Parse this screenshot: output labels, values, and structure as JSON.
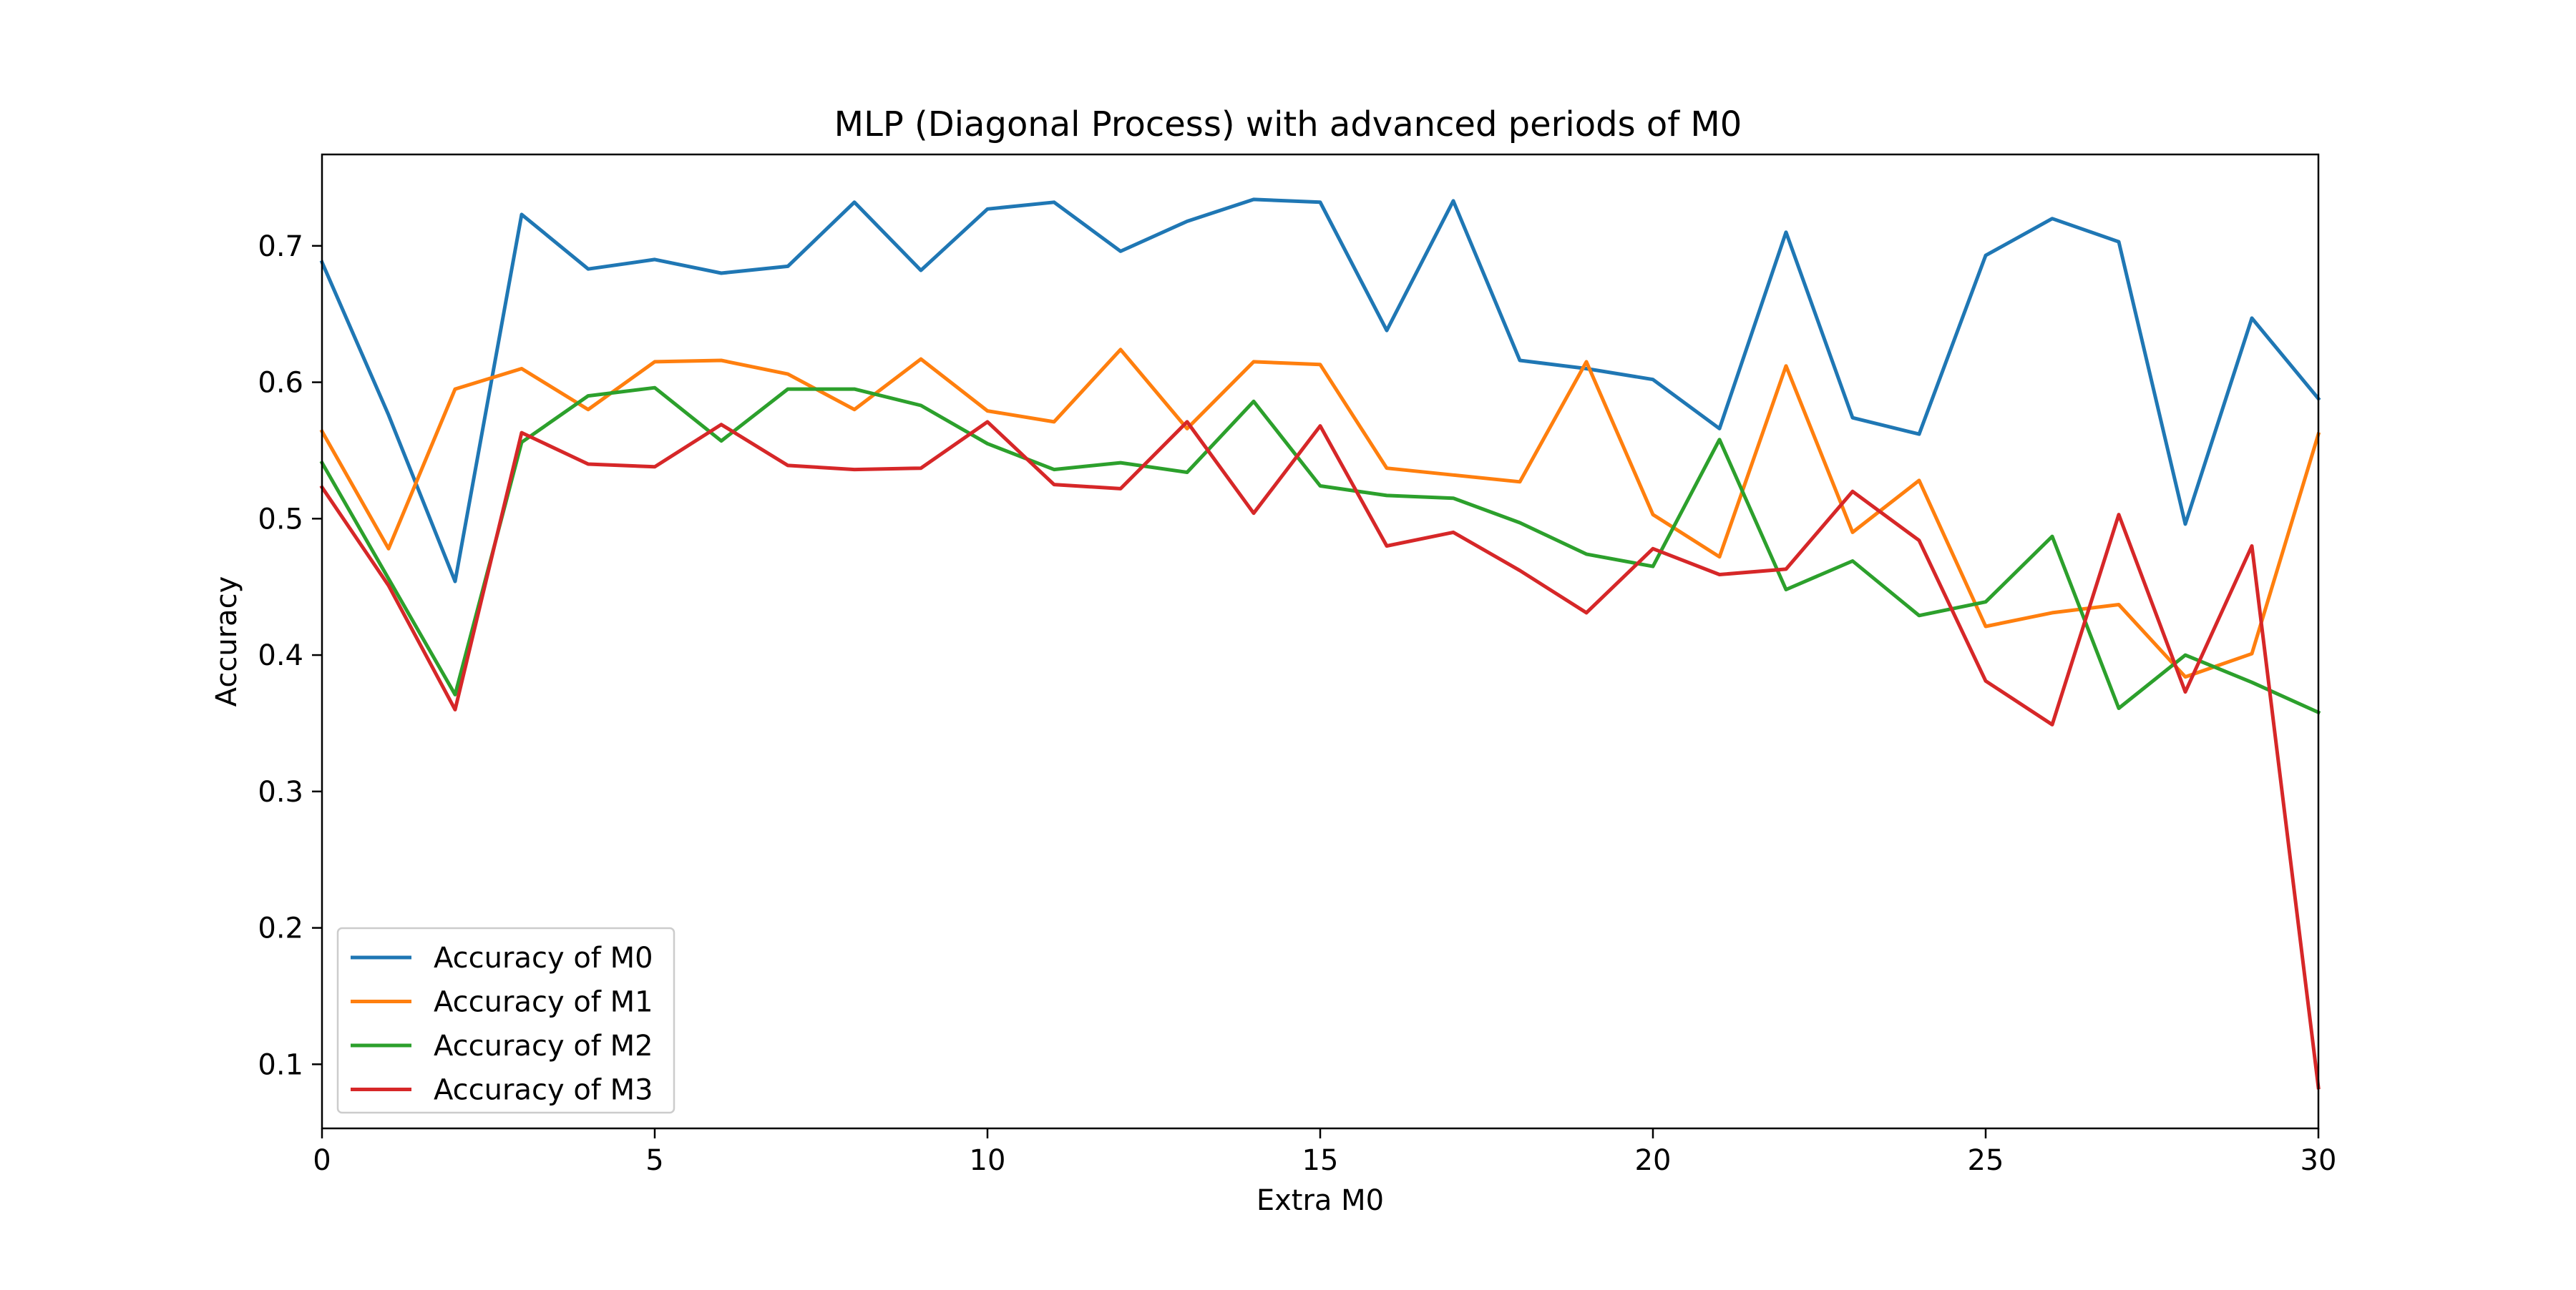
{
  "chart_data": {
    "type": "line",
    "title": "MLP (Diagonal Process) with advanced periods of M0",
    "xlabel": "Extra M0",
    "ylabel": "Accuracy",
    "xlim": [
      0,
      30
    ],
    "ylim": [
      0.053,
      0.767
    ],
    "xticks": [
      0,
      5,
      10,
      15,
      20,
      25,
      30
    ],
    "yticks": [
      0.1,
      0.2,
      0.3,
      0.4,
      0.5,
      0.6,
      0.7
    ],
    "grid": false,
    "legend_position": "lower-left",
    "x": [
      0,
      1,
      2,
      3,
      4,
      5,
      6,
      7,
      8,
      9,
      10,
      11,
      12,
      13,
      14,
      15,
      16,
      17,
      18,
      19,
      20,
      21,
      22,
      23,
      24,
      25,
      26,
      27,
      28,
      29,
      30
    ],
    "series": [
      {
        "name": "Accuracy of M0",
        "color": "#1f77b4",
        "values": [
          0.688,
          0.576,
          0.454,
          0.723,
          0.683,
          0.69,
          0.68,
          0.685,
          0.732,
          0.682,
          0.727,
          0.732,
          0.696,
          0.718,
          0.734,
          0.732,
          0.638,
          0.733,
          0.616,
          0.61,
          0.602,
          0.566,
          0.71,
          0.574,
          0.562,
          0.693,
          0.72,
          0.703,
          0.496,
          0.647,
          0.588
        ]
      },
      {
        "name": "Accuracy of M1",
        "color": "#ff7f0e",
        "values": [
          0.564,
          0.478,
          0.595,
          0.61,
          0.58,
          0.615,
          0.616,
          0.606,
          0.58,
          0.617,
          0.579,
          0.571,
          0.624,
          0.566,
          0.615,
          0.613,
          0.537,
          0.532,
          0.527,
          0.615,
          0.503,
          0.472,
          0.612,
          0.49,
          0.528,
          0.421,
          0.431,
          0.437,
          0.384,
          0.401,
          0.562
        ]
      },
      {
        "name": "Accuracy of M2",
        "color": "#2ca02c",
        "values": [
          0.541,
          0.456,
          0.371,
          0.556,
          0.59,
          0.596,
          0.557,
          0.595,
          0.595,
          0.583,
          0.555,
          0.536,
          0.541,
          0.534,
          0.586,
          0.524,
          0.517,
          0.515,
          0.497,
          0.474,
          0.465,
          0.558,
          0.448,
          0.469,
          0.429,
          0.439,
          0.487,
          0.361,
          0.4,
          0.38,
          0.358
        ]
      },
      {
        "name": "Accuracy of M3",
        "color": "#d62728",
        "values": [
          0.523,
          0.451,
          0.36,
          0.563,
          0.54,
          0.538,
          0.569,
          0.539,
          0.536,
          0.537,
          0.571,
          0.525,
          0.522,
          0.571,
          0.504,
          0.568,
          0.48,
          0.49,
          0.462,
          0.431,
          0.478,
          0.459,
          0.463,
          0.52,
          0.484,
          0.381,
          0.349,
          0.503,
          0.373,
          0.48,
          0.083
        ]
      }
    ]
  }
}
